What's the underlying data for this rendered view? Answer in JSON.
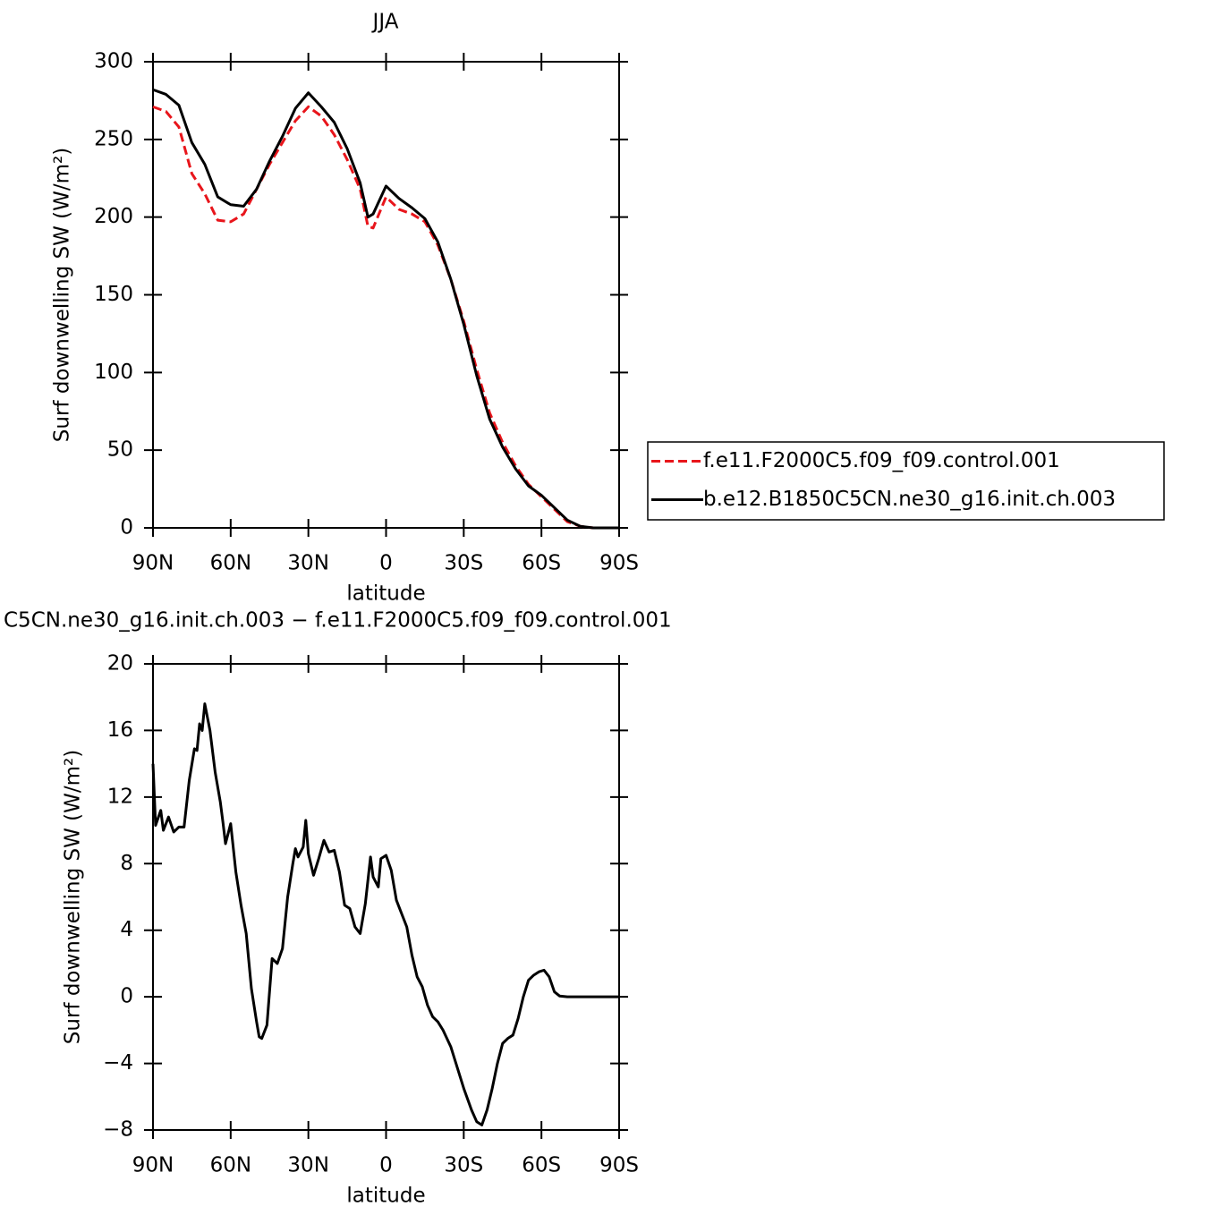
{
  "chart_data": [
    {
      "type": "line",
      "title": "JJA",
      "xlabel": "latitude",
      "ylabel": "Surf downwelling SW (W/m²)",
      "x": [
        90,
        85,
        80,
        75,
        70,
        65,
        60,
        55,
        50,
        45,
        40,
        35,
        30,
        25,
        20,
        15,
        10,
        7,
        5,
        0,
        -5,
        -10,
        -15,
        -20,
        -25,
        -30,
        -35,
        -40,
        -45,
        -50,
        -55,
        -60,
        -65,
        -70,
        -75,
        -80,
        -85,
        -90
      ],
      "series": [
        {
          "name": "f.e11.F2000C5.f09_f09.control.001",
          "color": "#e8151b",
          "linestyle": "dashed",
          "values": [
            271,
            268,
            258,
            228,
            215,
            198,
            197,
            202,
            218,
            234,
            248,
            262,
            271,
            265,
            253,
            237,
            218,
            194,
            193,
            213,
            205,
            202,
            197,
            182,
            160,
            133,
            102,
            74,
            55,
            40,
            28,
            20,
            12,
            4,
            1,
            0,
            0,
            0
          ]
        },
        {
          "name": "b.e12.B1850C5CN.ne30_g16.init.ch.003",
          "color": "#000000",
          "linestyle": "solid",
          "values": [
            282,
            279,
            272,
            248,
            234,
            213,
            208,
            207,
            218,
            236,
            252,
            270,
            280,
            271,
            261,
            244,
            222,
            200,
            202,
            220,
            212,
            206,
            199,
            184,
            160,
            131,
            98,
            70,
            52,
            38,
            27,
            21,
            13,
            5,
            1,
            0,
            0,
            0
          ]
        }
      ],
      "xlim": [
        90,
        -90
      ],
      "xticks": [
        {
          "value": 90,
          "label": "90N"
        },
        {
          "value": 60,
          "label": "60N"
        },
        {
          "value": 30,
          "label": "30N"
        },
        0,
        {
          "value": -30,
          "label": "30S"
        },
        {
          "value": -60,
          "label": "60S"
        },
        {
          "value": -90,
          "label": "90S"
        }
      ],
      "ylim": [
        0,
        300
      ],
      "yticks": [
        0,
        50,
        100,
        150,
        200,
        250,
        300
      ],
      "legend": "right"
    },
    {
      "type": "line",
      "title": "C5CN.ne30_g16.init.ch.003 − f.e11.F2000C5.f09_f09.control.001",
      "xlabel": "latitude",
      "ylabel": "Surf downwelling SW (W/m²)",
      "x": [
        90,
        89,
        87,
        86,
        84,
        82,
        80,
        78,
        76,
        74,
        73,
        72,
        71,
        70,
        68,
        66,
        64,
        63,
        62,
        60,
        58,
        56,
        54,
        52,
        50,
        49,
        48,
        46,
        44,
        42,
        40,
        38,
        36,
        35,
        34,
        32,
        31,
        30,
        28,
        26,
        24,
        22,
        20,
        18,
        16,
        14,
        12,
        10,
        8,
        6,
        5,
        3,
        2,
        0,
        -2,
        -4,
        -6,
        -8,
        -10,
        -12,
        -14,
        -16,
        -18,
        -20,
        -22,
        -25,
        -27,
        -30,
        -33,
        -35,
        -37,
        -39,
        -41,
        -43,
        -45,
        -47,
        -49,
        -51,
        -53,
        -55,
        -57,
        -59,
        -61,
        -63,
        -65,
        -67,
        -70,
        -80,
        -90
      ],
      "values": [
        14,
        10.3,
        11.2,
        10,
        10.8,
        9.9,
        10.2,
        10.2,
        13,
        14.9,
        14.8,
        16.4,
        16,
        17.6,
        16,
        13.5,
        11.7,
        10.5,
        9.2,
        10.4,
        7.5,
        5.5,
        3.8,
        0.5,
        -1.5,
        -2.4,
        -2.5,
        -1.7,
        2.3,
        2,
        2.9,
        6,
        8,
        8.9,
        8.4,
        9,
        10.6,
        8.6,
        7.3,
        8.3,
        9.4,
        8.7,
        8.8,
        7.5,
        5.5,
        5.3,
        4.2,
        3.8,
        5.6,
        8.4,
        7.2,
        6.6,
        8.3,
        8.5,
        7.6,
        5.8,
        5,
        4.2,
        2.5,
        1.2,
        0.6,
        -0.5,
        -1.2,
        -1.5,
        -2,
        -3,
        -4,
        -5.5,
        -6.8,
        -7.5,
        -7.7,
        -6.8,
        -5.5,
        -4,
        -2.8,
        -2.5,
        -2.3,
        -1.3,
        0,
        1,
        1.3,
        1.5,
        1.6,
        1.2,
        0.3,
        0.05,
        0,
        0,
        0
      ],
      "color": "#000000",
      "xlim": [
        90,
        -90
      ],
      "xticks": [
        {
          "value": 90,
          "label": "90N"
        },
        {
          "value": 60,
          "label": "60N"
        },
        {
          "value": 30,
          "label": "30N"
        },
        0,
        {
          "value": -30,
          "label": "30S"
        },
        {
          "value": -60,
          "label": "60S"
        },
        {
          "value": -90,
          "label": "90S"
        }
      ],
      "ylim": [
        -8,
        20
      ],
      "yticks": [
        {
          "value": -8,
          "label": "−8"
        },
        {
          "value": -4,
          "label": "−4"
        },
        0,
        4,
        8,
        12,
        16,
        20
      ]
    }
  ]
}
